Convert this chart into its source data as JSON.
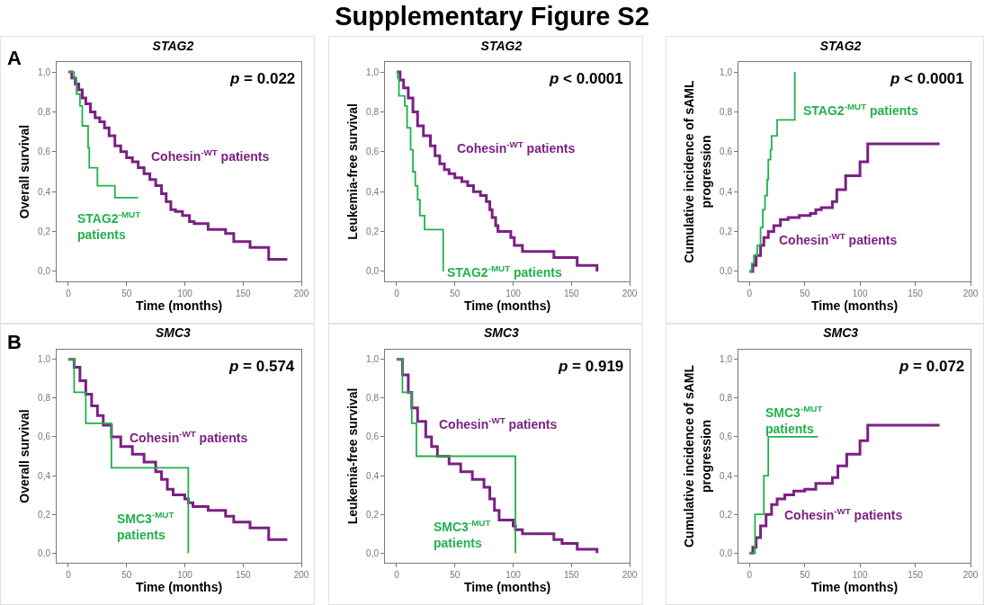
{
  "chart_data": [
    {
      "type": "step",
      "title": "STAG2",
      "xlabel": "Time (months)",
      "ylabel": "Overall survival",
      "xlim": [
        -10,
        200
      ],
      "xticks": [
        0,
        50,
        100,
        150,
        200
      ],
      "ylim": [
        -0.05,
        1.05
      ],
      "yticks": [
        {
          "value": 0,
          "label": "0,0"
        },
        {
          "value": 0.2,
          "label": "0,2"
        },
        {
          "value": 0.4,
          "label": "0,4"
        },
        {
          "value": 0.6,
          "label": "0,6"
        },
        {
          "value": 0.8,
          "label": "0,8"
        },
        {
          "value": 1,
          "label": "1,0"
        }
      ],
      "legend": false,
      "annotations": [
        "Supplementary Figure S2",
        "A",
        "p = 0.022"
      ],
      "series": [
        {
          "name": "Cohesin$^{-WT}$ patients",
          "color": "#7b2083",
          "x": [
            0,
            3,
            6,
            9,
            12,
            15,
            19,
            23,
            27,
            31,
            35,
            40,
            45,
            50,
            55,
            60,
            65,
            70,
            75,
            80,
            84,
            88,
            92,
            98,
            104,
            108,
            120,
            135,
            142,
            156,
            172,
            188
          ],
          "values": [
            1.0,
            0.97,
            0.94,
            0.91,
            0.87,
            0.84,
            0.8,
            0.77,
            0.75,
            0.72,
            0.68,
            0.63,
            0.6,
            0.57,
            0.55,
            0.52,
            0.49,
            0.46,
            0.43,
            0.39,
            0.35,
            0.31,
            0.3,
            0.28,
            0.25,
            0.24,
            0.21,
            0.19,
            0.15,
            0.12,
            0.06,
            0.06
          ]
        },
        {
          "name": "STAG2$^{-MUT}$ patients",
          "color": "#22b14c",
          "x": [
            0,
            5,
            7,
            10,
            12,
            17,
            18,
            25,
            40,
            60
          ],
          "values": [
            1.0,
            0.97,
            0.89,
            0.83,
            0.73,
            0.62,
            0.52,
            0.43,
            0.37,
            0.37
          ]
        }
      ]
    },
    {
      "type": "step",
      "title": "STAG2",
      "xlabel": "Time (months)",
      "ylabel": "Leukemia-free survival",
      "xlim": [
        -10,
        200
      ],
      "xticks": [
        0,
        50,
        100,
        150,
        200
      ],
      "ylim": [
        -0.05,
        1.05
      ],
      "yticks": [
        {
          "value": 0,
          "label": "0,0"
        },
        {
          "value": 0.2,
          "label": "0,2"
        },
        {
          "value": 0.4,
          "label": "0,4"
        },
        {
          "value": 0.6,
          "label": "0,6"
        },
        {
          "value": 0.8,
          "label": "0,8"
        },
        {
          "value": 1,
          "label": "1,0"
        }
      ],
      "legend": false,
      "annotations": [
        "p < 0.0001"
      ],
      "series": [
        {
          "name": "Cohesin$^{-WT}$ patients",
          "color": "#7b2083",
          "x": [
            0,
            3,
            6,
            10,
            14,
            18,
            23,
            29,
            33,
            37,
            41,
            45,
            50,
            56,
            61,
            66,
            72,
            77,
            80,
            82,
            85,
            87,
            98,
            101,
            108,
            135,
            155,
            172
          ],
          "values": [
            1.0,
            0.96,
            0.92,
            0.87,
            0.8,
            0.73,
            0.68,
            0.63,
            0.58,
            0.54,
            0.51,
            0.49,
            0.47,
            0.45,
            0.43,
            0.4,
            0.38,
            0.35,
            0.31,
            0.27,
            0.23,
            0.2,
            0.17,
            0.13,
            0.1,
            0.07,
            0.03,
            0.0
          ]
        },
        {
          "name": "STAG2$^{-MUT}$ patients",
          "color": "#22b14c",
          "x": [
            0,
            1,
            2,
            7,
            9,
            12,
            14,
            16,
            18,
            20,
            24,
            40
          ],
          "values": [
            1.0,
            0.97,
            0.88,
            0.83,
            0.72,
            0.61,
            0.5,
            0.43,
            0.36,
            0.28,
            0.21,
            0.0
          ]
        }
      ]
    },
    {
      "type": "step",
      "title": "STAG2",
      "xlabel": "Time (months)",
      "ylabel": "Cumulative incidence of sAML progression",
      "xlim": [
        -10,
        200
      ],
      "xticks": [
        0,
        50,
        100,
        150,
        200
      ],
      "ylim": [
        -0.05,
        1.05
      ],
      "yticks": [
        {
          "value": 0,
          "label": "0,0"
        },
        {
          "value": 0.2,
          "label": "0,2"
        },
        {
          "value": 0.4,
          "label": "0,4"
        },
        {
          "value": 0.6,
          "label": "0,6"
        },
        {
          "value": 0.8,
          "label": "0,8"
        },
        {
          "value": 1,
          "label": "1,0"
        }
      ],
      "legend": false,
      "annotations": [
        "p < 0.0001"
      ],
      "series": [
        {
          "name": "Cohesin$^{-WT}$ patients",
          "color": "#7b2083",
          "x": [
            0,
            3,
            6,
            10,
            13,
            17,
            22,
            28,
            35,
            45,
            55,
            60,
            65,
            75,
            79,
            87,
            100,
            107,
            172
          ],
          "values": [
            0,
            0.03,
            0.08,
            0.13,
            0.17,
            0.2,
            0.23,
            0.26,
            0.27,
            0.28,
            0.29,
            0.31,
            0.32,
            0.35,
            0.41,
            0.48,
            0.55,
            0.64,
            0.64
          ]
        },
        {
          "name": "STAG2$^{-MUT}$ patients",
          "color": "#22b14c",
          "x": [
            0,
            2,
            4,
            7,
            10,
            12,
            14,
            16,
            17,
            19,
            20,
            25,
            41
          ],
          "values": [
            0,
            0.04,
            0.08,
            0.13,
            0.22,
            0.31,
            0.38,
            0.46,
            0.56,
            0.61,
            0.68,
            0.76,
            1.0
          ]
        }
      ]
    },
    {
      "type": "step",
      "title": "SMC3",
      "xlabel": "Time (months)",
      "ylabel": "Overall survival",
      "xlim": [
        -10,
        200
      ],
      "xticks": [
        0,
        50,
        100,
        150,
        200
      ],
      "ylim": [
        -0.05,
        1.05
      ],
      "yticks": [
        {
          "value": 0,
          "label": "0,0"
        },
        {
          "value": 0.2,
          "label": "0,2"
        },
        {
          "value": 0.4,
          "label": "0,4"
        },
        {
          "value": 0.6,
          "label": "0,6"
        },
        {
          "value": 0.8,
          "label": "0,8"
        },
        {
          "value": 1,
          "label": "1,0"
        }
      ],
      "legend": false,
      "annotations": [
        "B",
        "p = 0.574"
      ],
      "series": [
        {
          "name": "Cohesin$^{-WT}$ patients",
          "color": "#7b2083",
          "x": [
            0,
            5,
            10,
            15,
            20,
            25,
            30,
            37,
            45,
            55,
            65,
            75,
            80,
            85,
            90,
            100,
            103,
            107,
            120,
            135,
            142,
            156,
            172,
            188
          ],
          "values": [
            1.0,
            0.96,
            0.89,
            0.82,
            0.76,
            0.71,
            0.66,
            0.6,
            0.55,
            0.51,
            0.47,
            0.42,
            0.38,
            0.33,
            0.3,
            0.28,
            0.26,
            0.24,
            0.22,
            0.19,
            0.16,
            0.13,
            0.07,
            0.07
          ]
        },
        {
          "name": "SMC3$^{-MUT}$ patients",
          "color": "#22b14c",
          "x": [
            0,
            5,
            15,
            37,
            103
          ],
          "values": [
            1.0,
            0.83,
            0.67,
            0.44,
            0.0
          ]
        }
      ]
    },
    {
      "type": "step",
      "title": "SMC3",
      "xlabel": "Time (months)",
      "ylabel": "Leukemia-free survival",
      "xlim": [
        -10,
        200
      ],
      "xticks": [
        0,
        50,
        100,
        150,
        200
      ],
      "ylim": [
        -0.05,
        1.05
      ],
      "yticks": [
        {
          "value": 0,
          "label": "0,0"
        },
        {
          "value": 0.2,
          "label": "0,2"
        },
        {
          "value": 0.4,
          "label": "0,4"
        },
        {
          "value": 0.6,
          "label": "0,6"
        },
        {
          "value": 0.8,
          "label": "0,8"
        },
        {
          "value": 1,
          "label": "1,0"
        }
      ],
      "legend": false,
      "annotations": [
        "p = 0.919"
      ],
      "series": [
        {
          "name": "Cohesin$^{-WT}$ patients",
          "color": "#7b2083",
          "x": [
            0,
            5,
            10,
            13,
            18,
            25,
            30,
            35,
            45,
            55,
            65,
            75,
            80,
            84,
            88,
            100,
            102,
            108,
            135,
            142,
            155,
            172
          ],
          "values": [
            1.0,
            0.92,
            0.83,
            0.75,
            0.68,
            0.6,
            0.55,
            0.5,
            0.46,
            0.42,
            0.38,
            0.34,
            0.28,
            0.22,
            0.17,
            0.14,
            0.12,
            0.1,
            0.07,
            0.05,
            0.02,
            0.0
          ]
        },
        {
          "name": "SMC3$^{-MUT}$ patients",
          "color": "#22b14c",
          "x": [
            0,
            5,
            13,
            17,
            102
          ],
          "values": [
            1.0,
            0.83,
            0.67,
            0.5,
            0.0
          ]
        }
      ]
    },
    {
      "type": "step",
      "title": "SMC3",
      "xlabel": "Time (months)",
      "ylabel": "Cumulative incidence of sAML progression",
      "xlim": [
        -10,
        200
      ],
      "xticks": [
        0,
        50,
        100,
        150,
        200
      ],
      "ylim": [
        -0.05,
        1.05
      ],
      "yticks": [
        {
          "value": 0,
          "label": "0,0"
        },
        {
          "value": 0.2,
          "label": "0,2"
        },
        {
          "value": 0.4,
          "label": "0,4"
        },
        {
          "value": 0.6,
          "label": "0,6"
        },
        {
          "value": 0.8,
          "label": "0,8"
        },
        {
          "value": 1,
          "label": "1,0"
        }
      ],
      "legend": false,
      "annotations": [
        "p = 0.072"
      ],
      "series": [
        {
          "name": "Cohesin$^{-WT}$ patients",
          "color": "#7b2083",
          "x": [
            0,
            3,
            6,
            10,
            15,
            20,
            25,
            32,
            40,
            50,
            60,
            75,
            80,
            88,
            100,
            107,
            172
          ],
          "values": [
            0,
            0.03,
            0.08,
            0.14,
            0.2,
            0.25,
            0.28,
            0.3,
            0.32,
            0.33,
            0.36,
            0.39,
            0.45,
            0.51,
            0.58,
            0.66,
            0.66
          ]
        },
        {
          "name": "SMC3$^{-MUT}$ patients",
          "color": "#22b14c",
          "x": [
            0,
            5,
            13,
            17,
            62
          ],
          "values": [
            0,
            0.2,
            0.4,
            0.6,
            0.6
          ]
        }
      ]
    }
  ]
}
